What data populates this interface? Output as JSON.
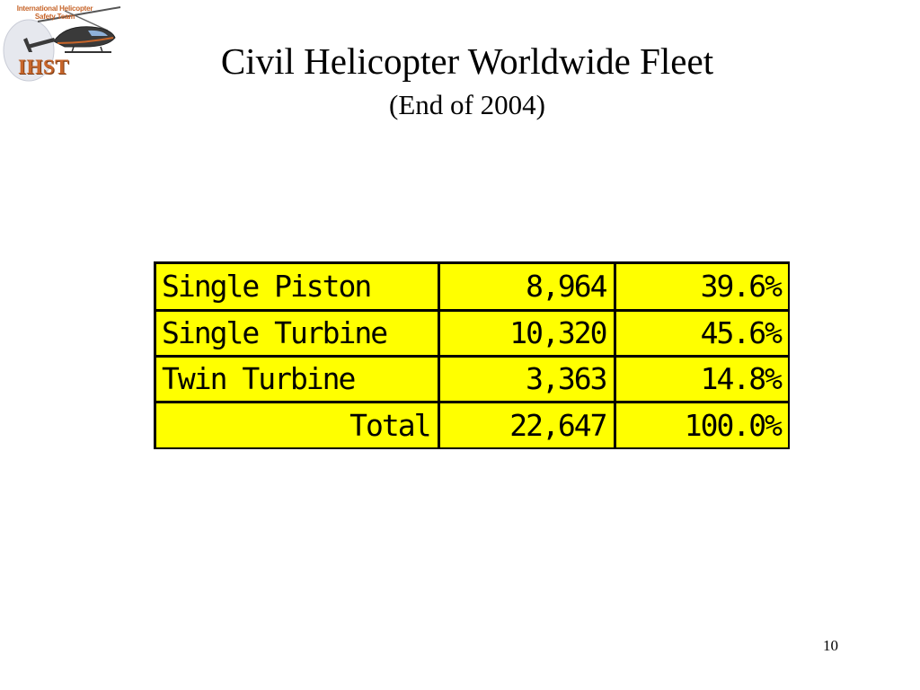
{
  "logo": {
    "org_line1": "International Helicopter",
    "org_line2": "Safety Team",
    "brand": "IHST",
    "colors": {
      "brand": "#c7652a",
      "helicopter": "#3a3a3a"
    }
  },
  "slide": {
    "title": "Civil Helicopter Worldwide Fleet",
    "subtitle": "(End of 2004)",
    "page_number": "10"
  },
  "table": {
    "background_color": "#ffff00",
    "rows": [
      {
        "label": "Single Piston",
        "count": "8,964",
        "percent": "39.6%"
      },
      {
        "label": "Single Turbine",
        "count": "10,320",
        "percent": "45.6%"
      },
      {
        "label": "Twin Turbine",
        "count": "3,363",
        "percent": "14.8%"
      }
    ],
    "total": {
      "label": "Total",
      "count": "22,647",
      "percent": "100.0%"
    }
  }
}
